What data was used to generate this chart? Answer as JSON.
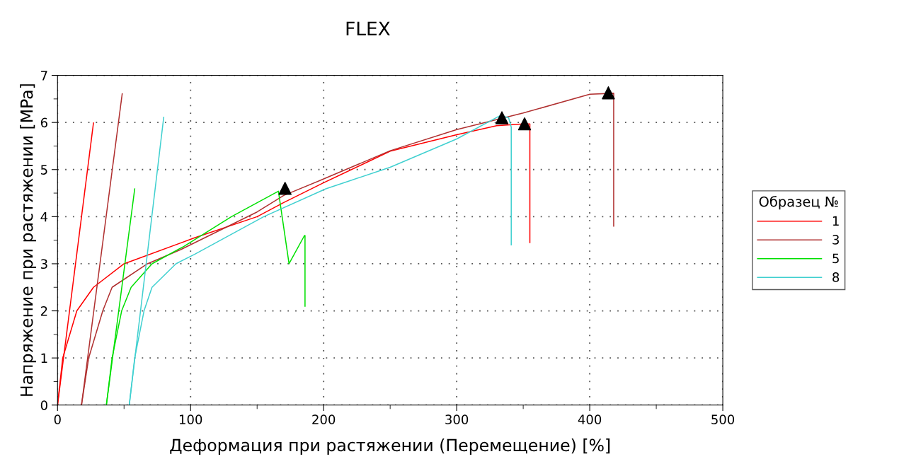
{
  "chart_data": {
    "type": "line",
    "title": "FLEX",
    "xlabel": "Деформация при растяжении (Перемещение) [%]",
    "ylabel": "Напряжение при растяжении [MPa]",
    "legend_title": "Образец №",
    "legend": "right",
    "grid": true,
    "line_style": "solid",
    "marker": "none",
    "xlim": [
      0,
      500
    ],
    "ylim": [
      0,
      7
    ],
    "xticks": [
      0,
      {
        "value": 50,
        "label": null
      },
      100,
      {
        "value": 150,
        "label": null
      },
      200,
      {
        "value": 250,
        "label": null
      },
      300,
      {
        "value": 350,
        "label": null
      },
      400,
      {
        "value": 450,
        "label": null
      },
      500
    ],
    "yticks": [
      0,
      {
        "value": 0.5,
        "label": null
      },
      1,
      {
        "value": 1.5,
        "label": null
      },
      2,
      {
        "value": 2.5,
        "label": null
      },
      3,
      {
        "value": 3.5,
        "label": null
      },
      4,
      {
        "value": 4.5,
        "label": null
      },
      5,
      {
        "value": 5.5,
        "label": null
      },
      6,
      {
        "value": 6.5,
        "label": null
      },
      7
    ],
    "series": [
      {
        "name": "1",
        "color": "#ff0000",
        "x": [
          0,
          3.9,
          14.5,
          27,
          50,
          103,
          150,
          170,
          200,
          250,
          300,
          330,
          350,
          355,
          355
        ],
        "values": [
          0,
          1.0,
          2.0,
          2.5,
          3.0,
          3.55,
          4.0,
          4.3,
          4.72,
          5.39,
          5.74,
          5.93,
          5.97,
          5.97,
          3.45
        ]
      },
      {
        "name": "3",
        "color": "#b03030",
        "x": [
          18,
          23.4,
          34,
          41,
          67.6,
          92.5,
          150,
          170,
          200,
          250,
          300,
          350,
          400,
          418,
          418
        ],
        "values": [
          0,
          1.0,
          2.0,
          2.5,
          3.0,
          3.3,
          4.1,
          4.45,
          4.8,
          5.4,
          5.85,
          6.2,
          6.6,
          6.62,
          3.8
        ]
      },
      {
        "name": "5",
        "color": "#00e000",
        "x": [
          36.7,
          41,
          48.2,
          55.3,
          71,
          95,
          130.7,
          166,
          174,
          185.6,
          186,
          186
        ],
        "values": [
          0,
          1.0,
          2.0,
          2.5,
          3.0,
          3.37,
          4.0,
          4.54,
          3.0,
          3.6,
          3.6,
          2.1
        ]
      },
      {
        "name": "8",
        "color": "#40d0d0",
        "x": [
          53.9,
          58,
          65,
          71,
          89,
          103,
          155,
          201.6,
          250,
          300,
          333,
          339,
          341,
          341
        ],
        "values": [
          0,
          1.0,
          2.0,
          2.5,
          3.0,
          3.2,
          4.0,
          4.59,
          5.05,
          5.65,
          6.15,
          6.1,
          5.9,
          3.4
        ]
      },
      {
        "color": "#ff0000",
        "x": [
          0,
          27
        ],
        "values": [
          0,
          5.99
        ]
      },
      {
        "color": "#b03030",
        "x": [
          18,
          48.6
        ],
        "values": [
          0,
          6.61
        ]
      },
      {
        "color": "#00e000",
        "x": [
          36.7,
          58
        ],
        "values": [
          0,
          4.59
        ]
      },
      {
        "color": "#40d0d0",
        "x": [
          53.9,
          79.8
        ],
        "values": [
          0,
          6.11
        ]
      },
      {
        "type": "scatter",
        "marker": "triangle",
        "color": "#000000",
        "x": [
          171,
          334,
          351,
          414
        ],
        "values": [
          4.6,
          6.1,
          5.97,
          6.63
        ]
      }
    ]
  }
}
